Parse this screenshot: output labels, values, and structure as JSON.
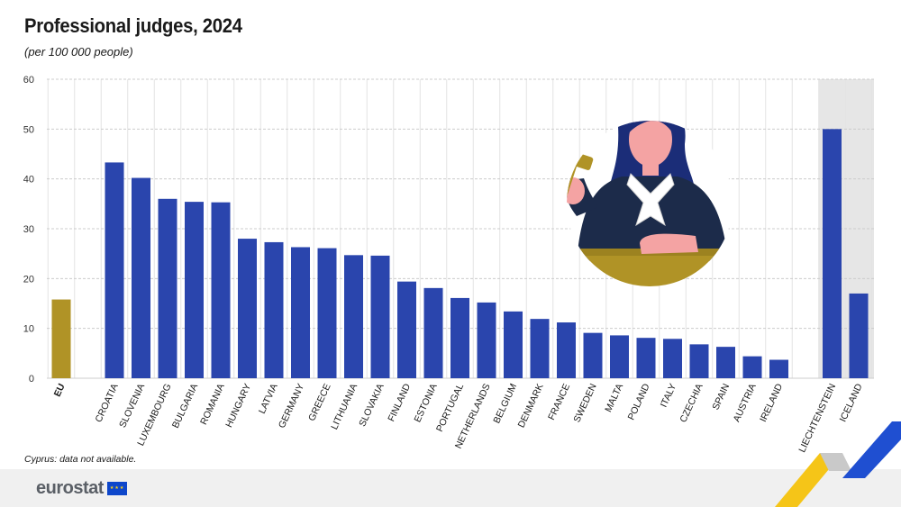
{
  "title": "Professional judges, 2024",
  "subtitle": "(per 100 000 people)",
  "footnote": "Cyprus: data not available.",
  "logo_text": "eurostat",
  "colors": {
    "eu_bar": "#b09326",
    "country_bar": "#2a45ad",
    "highlight_bg": "#e6e6e6",
    "grid": "#cccccc"
  },
  "chart_data": {
    "type": "bar",
    "title": "Professional judges, 2024",
    "ylabel": "",
    "ylim": [
      0,
      60
    ],
    "yticks": [
      0,
      10,
      20,
      30,
      40,
      50,
      60
    ],
    "grid": true,
    "categories": [
      "EU",
      "CROATIA",
      "SLOVENIA",
      "LUXEMBOURG",
      "BULGARIA",
      "ROMANIA",
      "HUNGARY",
      "LATVIA",
      "GERMANY",
      "GREECE",
      "LITHUANIA",
      "SLOVAKIA",
      "FINLAND",
      "ESTONIA",
      "PORTUGAL",
      "NETHERLANDS",
      "BELGIUM",
      "DENMARK",
      "FRANCE",
      "SWEDEN",
      "MALTA",
      "POLAND",
      "ITALY",
      "CZECHIA",
      "SPAIN",
      "AUSTRIA",
      "IRELAND",
      "LIECHTENSTEIN",
      "ICELAND"
    ],
    "values": [
      15.8,
      43.3,
      40.2,
      36.0,
      35.4,
      35.3,
      28.0,
      27.3,
      26.3,
      26.1,
      24.7,
      24.6,
      19.4,
      18.1,
      16.1,
      15.2,
      13.4,
      11.9,
      11.2,
      9.1,
      8.6,
      8.1,
      7.9,
      6.8,
      6.3,
      4.4,
      3.7,
      50.0,
      17.0
    ]
  }
}
